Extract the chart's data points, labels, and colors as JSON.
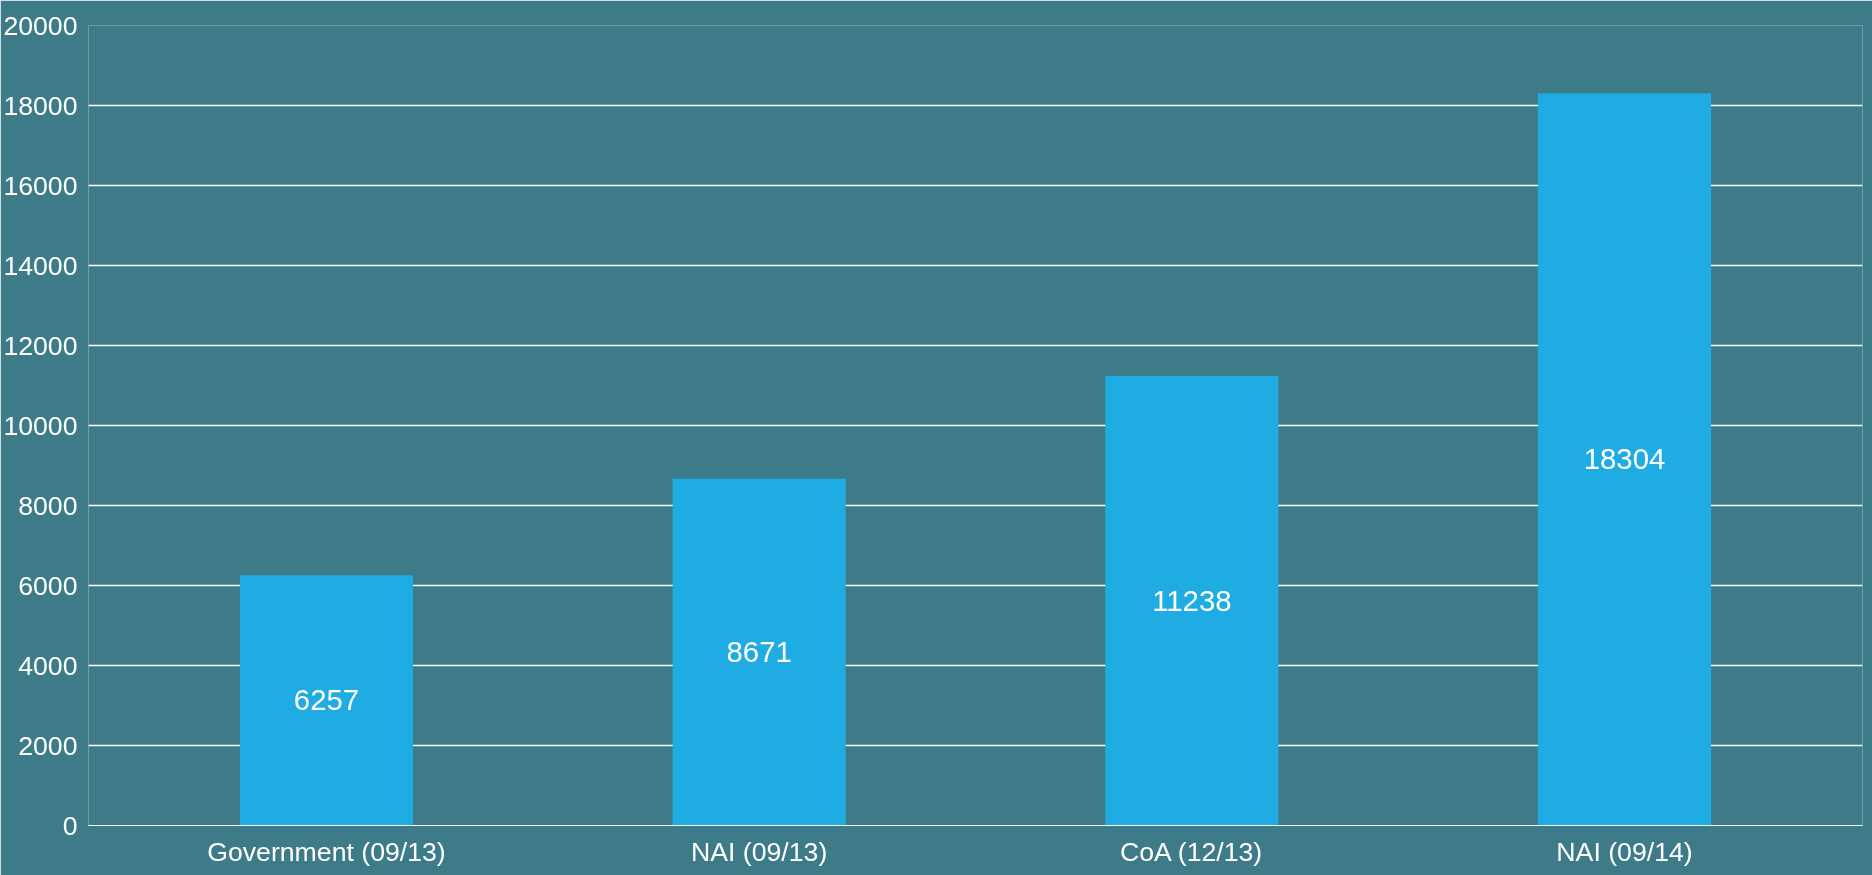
{
  "chart_data": {
    "type": "bar",
    "categories": [
      "Government (09/13)",
      "NAI (09/13)",
      "CoA (12/13)",
      "NAI (09/14)"
    ],
    "values": [
      6257,
      8671,
      11238,
      18304
    ],
    "color": "#1eace2",
    "ylim": [
      0,
      20000
    ],
    "yticks": [
      0,
      2000,
      4000,
      6000,
      8000,
      10000,
      12000,
      14000,
      16000,
      18000,
      20000
    ],
    "grid": "y",
    "data_labels": true
  }
}
